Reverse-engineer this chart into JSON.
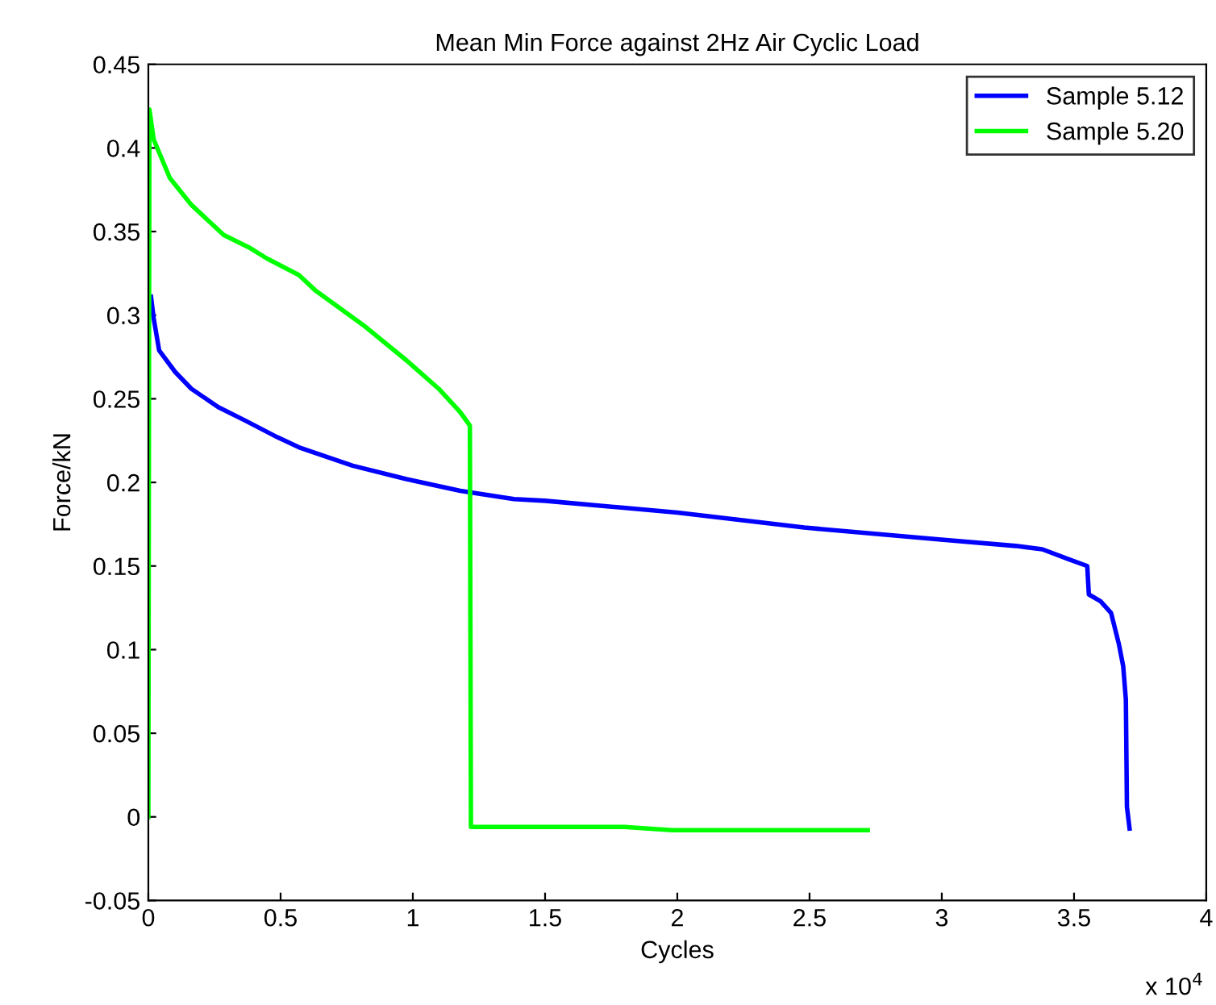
{
  "chart_data": {
    "type": "line",
    "title": "Mean Min Force against 2Hz Air Cyclic Load",
    "xlabel": "Cycles",
    "ylabel": "Force/kN",
    "xlim": [
      0,
      4
    ],
    "xticks": [
      0,
      0.5,
      1,
      1.5,
      2,
      2.5,
      3,
      3.5,
      4
    ],
    "ylim": [
      -0.05,
      0.45
    ],
    "yticks": [
      -0.05,
      0,
      0.05,
      0.1,
      0.15,
      0.2,
      0.25,
      0.3,
      0.35,
      0.4,
      0.45
    ],
    "grid": false,
    "legend": "top right",
    "marker": "none",
    "line_style": "solid",
    "annotations": [
      "x 10$^{4}$"
    ],
    "series": [
      {
        "name": "Sample 5.12",
        "color": "#0000ff",
        "x": [
          0.01,
          0.0203,
          0.0407,
          0.1016,
          0.1626,
          0.2643,
          0.3659,
          0.4879,
          0.5692,
          0.7725,
          0.9758,
          1.1791,
          1.3824,
          1.5,
          2.0,
          2.48,
          2.98,
          3.28,
          3.38,
          3.48,
          3.55,
          3.556,
          3.6,
          3.64,
          3.67,
          3.686,
          3.696,
          3.7,
          3.71
        ],
        "values": [
          0.311,
          0.298,
          0.279,
          0.266,
          0.256,
          0.245,
          0.237,
          0.227,
          0.221,
          0.21,
          0.202,
          0.195,
          0.19,
          0.189,
          0.182,
          0.173,
          0.166,
          0.162,
          0.16,
          0.154,
          0.15,
          0.133,
          0.129,
          0.122,
          0.103,
          0.09,
          0.07,
          0.006,
          -0.007
        ]
      },
      {
        "name": "Sample 5.20",
        "color": "#00ff00",
        "x": [
          0,
          0.004,
          0.0203,
          0.0813,
          0.1626,
          0.2846,
          0.3862,
          0.4472,
          0.5692,
          0.6301,
          0.813,
          0.9758,
          1.0978,
          1.1791,
          1.2157,
          1.2197,
          1.8,
          1.98,
          2.72
        ],
        "values": [
          0,
          0.423,
          0.405,
          0.382,
          0.366,
          0.348,
          0.34,
          0.334,
          0.324,
          0.315,
          0.294,
          0.273,
          0.256,
          0.242,
          0.234,
          -0.006,
          -0.006,
          -0.008,
          -0.008
        ]
      }
    ]
  }
}
